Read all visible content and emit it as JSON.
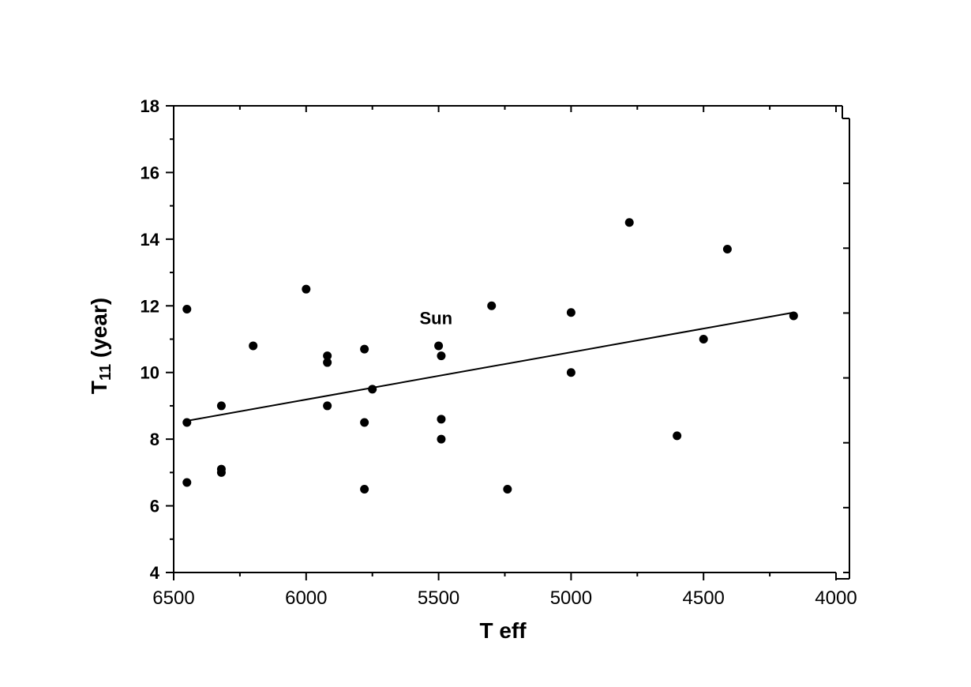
{
  "chart_data": {
    "type": "scatter",
    "title": "",
    "xlabel": "T eff",
    "ylabel_main": "T",
    "ylabel_sub": "11",
    "ylabel_rest": " (year)",
    "xlim": [
      6500,
      4000
    ],
    "ylim": [
      4,
      18
    ],
    "x_ticks": [
      6500,
      6000,
      5500,
      5000,
      4500,
      4000
    ],
    "y_ticks": [
      4,
      6,
      8,
      10,
      12,
      14,
      16,
      18
    ],
    "grid": false,
    "series": [
      {
        "points": [
          {
            "x": 6450,
            "y": 11.9
          },
          {
            "x": 6450,
            "y": 8.5
          },
          {
            "x": 6450,
            "y": 6.7
          },
          {
            "x": 6320,
            "y": 9.0
          },
          {
            "x": 6320,
            "y": 7.1
          },
          {
            "x": 6320,
            "y": 7.0
          },
          {
            "x": 6200,
            "y": 10.8
          },
          {
            "x": 6000,
            "y": 12.5
          },
          {
            "x": 5920,
            "y": 10.5
          },
          {
            "x": 5920,
            "y": 10.3
          },
          {
            "x": 5920,
            "y": 9.0
          },
          {
            "x": 5780,
            "y": 10.7
          },
          {
            "x": 5780,
            "y": 8.5
          },
          {
            "x": 5780,
            "y": 6.5
          },
          {
            "x": 5750,
            "y": 9.5
          },
          {
            "x": 5500,
            "y": 10.8
          },
          {
            "x": 5490,
            "y": 10.5
          },
          {
            "x": 5490,
            "y": 8.6
          },
          {
            "x": 5490,
            "y": 8.0
          },
          {
            "x": 5300,
            "y": 12.0
          },
          {
            "x": 5240,
            "y": 6.5
          },
          {
            "x": 5000,
            "y": 11.8
          },
          {
            "x": 5000,
            "y": 10.0
          },
          {
            "x": 4780,
            "y": 14.5
          },
          {
            "x": 4600,
            "y": 8.1
          },
          {
            "x": 4500,
            "y": 11.0
          },
          {
            "x": 4410,
            "y": 13.7
          },
          {
            "x": 4160,
            "y": 11.7
          }
        ]
      }
    ],
    "fit_line": {
      "x1": 6450,
      "y1": 8.55,
      "x2": 4160,
      "y2": 11.8
    },
    "annotations": [
      {
        "text": "Sun",
        "x": 5510,
        "y": 11.45
      }
    ]
  }
}
